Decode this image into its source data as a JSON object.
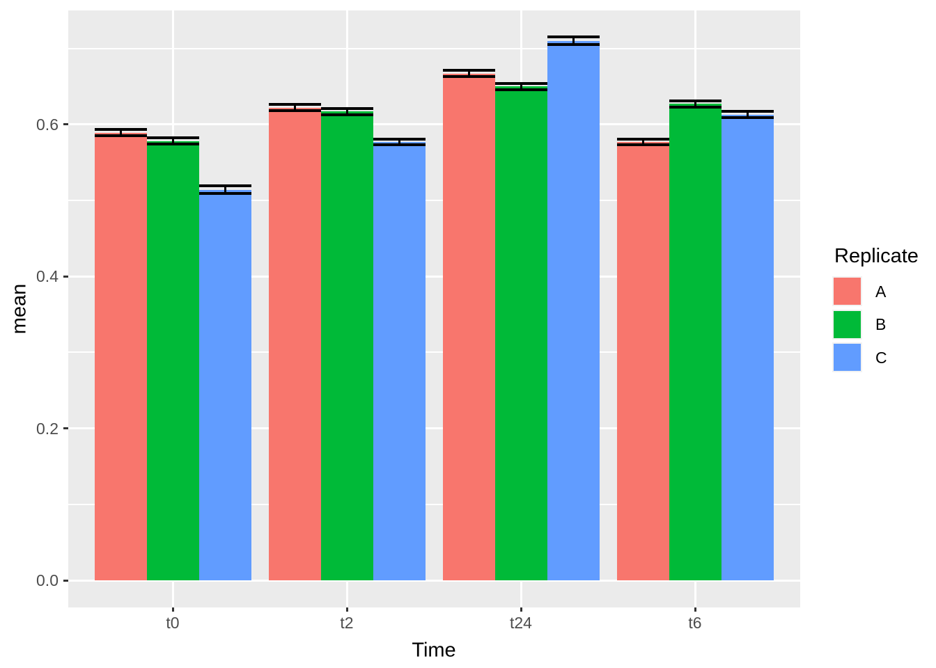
{
  "chart_data": {
    "type": "bar",
    "title": "",
    "xlabel": "Time",
    "ylabel": "mean",
    "categories": [
      "t0",
      "t2",
      "t24",
      "t6"
    ],
    "series": [
      {
        "name": "A",
        "color": "#F8766D",
        "values": [
          0.589,
          0.622,
          0.667,
          0.577
        ],
        "sd": [
          0.004,
          0.004,
          0.004,
          0.0035
        ]
      },
      {
        "name": "B",
        "color": "#00BA38",
        "values": [
          0.578,
          0.617,
          0.65,
          0.627
        ],
        "sd": [
          0.004,
          0.004,
          0.004,
          0.004
        ]
      },
      {
        "name": "C",
        "color": "#619CFF",
        "values": [
          0.514,
          0.577,
          0.71,
          0.613
        ],
        "sd": [
          0.005,
          0.0035,
          0.005,
          0.004
        ]
      }
    ],
    "error_bars": true,
    "y_ticks": [
      0.0,
      0.2,
      0.4,
      0.6
    ],
    "y_tick_labels": [
      "0.0",
      "0.2",
      "0.4",
      "0.6"
    ],
    "y_minor_ticks": [
      0.1,
      0.3,
      0.5,
      0.7
    ],
    "ylim": [
      -0.036,
      0.75
    ],
    "grid": true,
    "legend_title": "Replicate",
    "legend_position": "right",
    "theme": {
      "panel_bg": "#EBEBEB",
      "grid_color": "#FFFFFF",
      "tick_color": "#333333",
      "tick_label_color": "#4D4D4D",
      "axis_title_color": "#000000",
      "errorbar_color": "#000000",
      "figure_bg": "#FFFFFF",
      "legend_key_bg": "#F2F2F2"
    }
  }
}
